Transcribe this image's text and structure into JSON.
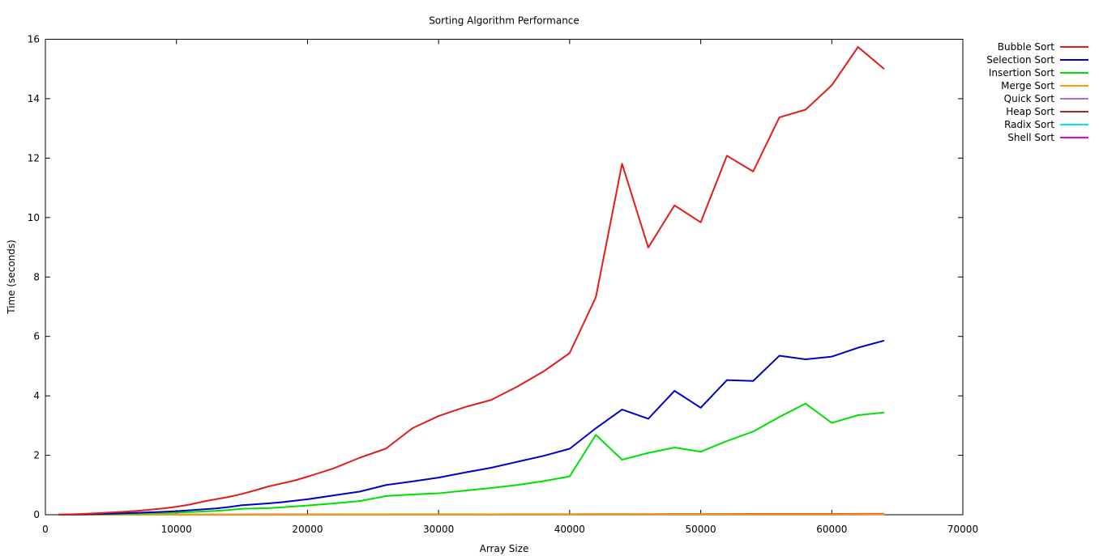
{
  "chart_data": {
    "type": "line",
    "title": "Sorting Algorithm Performance",
    "xlabel": "Array Size",
    "ylabel": "Time (seconds)",
    "xlim": [
      0,
      70000
    ],
    "ylim": [
      0,
      16
    ],
    "xticks": [
      0,
      10000,
      20000,
      30000,
      40000,
      50000,
      60000,
      70000
    ],
    "yticks": [
      0,
      2,
      4,
      6,
      8,
      10,
      12,
      14,
      16
    ],
    "grid": false,
    "legend_position": "top-right-outside",
    "x": [
      1000,
      2000,
      3000,
      4000,
      5000,
      6000,
      7000,
      8000,
      9000,
      10000,
      11000,
      12000,
      13000,
      14000,
      15000,
      16000,
      17000,
      18000,
      19000,
      20000,
      22000,
      24000,
      26000,
      28000,
      30000,
      32000,
      34000,
      36000,
      38000,
      40000,
      42000,
      44000,
      46000,
      48000,
      50000,
      52000,
      54000,
      56000,
      58000,
      60000,
      62000,
      64000
    ],
    "series": [
      {
        "name": "Bubble Sort",
        "color": "#e41a1c",
        "values": [
          0.005,
          0.015,
          0.03,
          0.05,
          0.075,
          0.1,
          0.13,
          0.17,
          0.21,
          0.27,
          0.34,
          0.44,
          0.52,
          0.6,
          0.7,
          0.82,
          0.95,
          1.05,
          1.15,
          1.28,
          1.56,
          1.92,
          2.23,
          2.91,
          3.32,
          3.62,
          3.86,
          4.31,
          4.82,
          5.44,
          7.32,
          11.81,
          8.99,
          10.41,
          9.84,
          12.08,
          11.55,
          13.37,
          13.63,
          14.45,
          15.74,
          15.0
        ]
      },
      {
        "name": "Selection Sort",
        "color": "#0000cc",
        "values": [
          0.003,
          0.008,
          0.015,
          0.025,
          0.035,
          0.05,
          0.065,
          0.08,
          0.1,
          0.12,
          0.15,
          0.18,
          0.21,
          0.26,
          0.32,
          0.35,
          0.38,
          0.42,
          0.47,
          0.52,
          0.65,
          0.78,
          1.0,
          1.12,
          1.25,
          1.42,
          1.58,
          1.78,
          1.98,
          2.22,
          2.91,
          3.54,
          3.23,
          4.17,
          3.6,
          4.53,
          4.5,
          5.35,
          5.23,
          5.32,
          5.62,
          5.86
        ]
      },
      {
        "name": "Insertion Sort",
        "color": "#00e000",
        "values": [
          0.002,
          0.005,
          0.01,
          0.015,
          0.022,
          0.03,
          0.04,
          0.05,
          0.06,
          0.075,
          0.09,
          0.11,
          0.13,
          0.16,
          0.2,
          0.21,
          0.22,
          0.25,
          0.28,
          0.31,
          0.38,
          0.46,
          0.63,
          0.68,
          0.72,
          0.81,
          0.9,
          1.0,
          1.13,
          1.29,
          2.69,
          1.85,
          2.08,
          2.26,
          2.12,
          2.48,
          2.8,
          3.29,
          3.74,
          3.09,
          3.35,
          3.44
        ]
      },
      {
        "name": "Merge Sort",
        "color": "#ff9900",
        "values": [
          0.001,
          0.001,
          0.001,
          0.001,
          0.002,
          0.002,
          0.002,
          0.002,
          0.003,
          0.003,
          0.003,
          0.003,
          0.004,
          0.004,
          0.004,
          0.004,
          0.005,
          0.005,
          0.005,
          0.005,
          0.006,
          0.006,
          0.007,
          0.007,
          0.008,
          0.008,
          0.009,
          0.009,
          0.01,
          0.01,
          0.011,
          0.011,
          0.012,
          0.012,
          0.013,
          0.013,
          0.014,
          0.014,
          0.015,
          0.015,
          0.016,
          0.016
        ]
      },
      {
        "name": "Quick Sort",
        "color": "#a66ee6",
        "values": [
          0.001,
          0.001,
          0.001,
          0.001,
          0.001,
          0.001,
          0.001,
          0.001,
          0.002,
          0.002,
          0.002,
          0.002,
          0.002,
          0.002,
          0.002,
          0.002,
          0.003,
          0.003,
          0.003,
          0.003,
          0.003,
          0.004,
          0.004,
          0.004,
          0.004,
          0.005,
          0.005,
          0.005,
          0.005,
          0.006,
          0.006,
          0.006,
          0.006,
          0.007,
          0.007,
          0.007,
          0.007,
          0.008,
          0.008,
          0.008,
          0.008,
          0.009
        ]
      },
      {
        "name": "Heap Sort",
        "color": "#a52a2a",
        "values": [
          0.001,
          0.001,
          0.001,
          0.002,
          0.002,
          0.002,
          0.003,
          0.003,
          0.003,
          0.004,
          0.004,
          0.004,
          0.005,
          0.005,
          0.005,
          0.006,
          0.006,
          0.007,
          0.007,
          0.008,
          0.009,
          0.01,
          0.011,
          0.012,
          0.013,
          0.014,
          0.015,
          0.016,
          0.017,
          0.018,
          0.02,
          0.021,
          0.022,
          0.023,
          0.024,
          0.025,
          0.026,
          0.027,
          0.028,
          0.029,
          0.03,
          0.031
        ]
      },
      {
        "name": "Radix Sort",
        "color": "#00e5ee",
        "values": [
          0.0005,
          0.0005,
          0.0005,
          0.001,
          0.001,
          0.001,
          0.001,
          0.001,
          0.001,
          0.001,
          0.001,
          0.001,
          0.002,
          0.002,
          0.002,
          0.002,
          0.002,
          0.002,
          0.002,
          0.002,
          0.002,
          0.003,
          0.003,
          0.003,
          0.003,
          0.003,
          0.003,
          0.003,
          0.004,
          0.004,
          0.004,
          0.004,
          0.004,
          0.004,
          0.005,
          0.005,
          0.005,
          0.005,
          0.005,
          0.005,
          0.006,
          0.006
        ]
      },
      {
        "name": "Shell Sort",
        "color": "#e600e6",
        "values": [
          0.001,
          0.001,
          0.001,
          0.001,
          0.001,
          0.002,
          0.002,
          0.002,
          0.002,
          0.003,
          0.003,
          0.003,
          0.003,
          0.004,
          0.004,
          0.004,
          0.004,
          0.005,
          0.005,
          0.005,
          0.006,
          0.006,
          0.007,
          0.007,
          0.008,
          0.008,
          0.009,
          0.009,
          0.01,
          0.01,
          0.011,
          0.011,
          0.012,
          0.012,
          0.013,
          0.013,
          0.014,
          0.014,
          0.015,
          0.015,
          0.016,
          0.016
        ]
      }
    ]
  }
}
